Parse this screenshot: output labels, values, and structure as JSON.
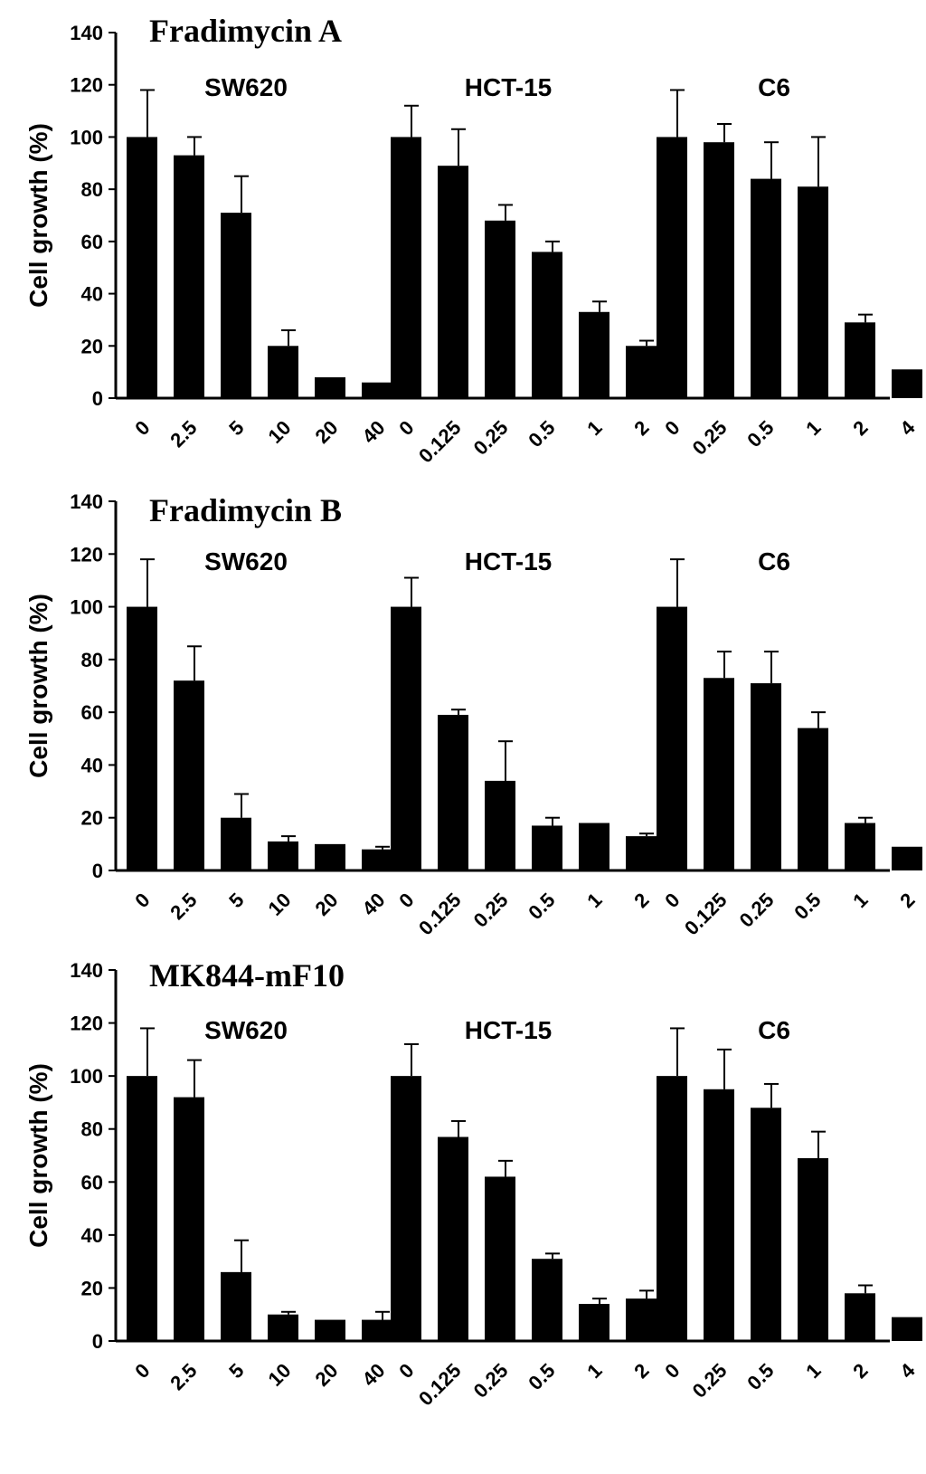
{
  "chart_data": [
    {
      "type": "bar",
      "title": "Fradimycin A",
      "ylabel": "Cell growth (%)",
      "ylim": [
        0,
        140
      ],
      "yticks": [
        "0",
        "20",
        "40",
        "60",
        "80",
        "100",
        "120",
        "140"
      ],
      "groups": [
        {
          "name": "SW620",
          "categories": [
            "0",
            "2.5",
            "5",
            "10",
            "20",
            "40"
          ],
          "values": [
            100,
            93,
            71,
            20,
            8,
            6
          ],
          "errors": [
            18,
            7,
            14,
            6,
            0,
            0
          ]
        },
        {
          "name": "HCT-15",
          "categories": [
            "0",
            "0.125",
            "0.25",
            "0.5",
            "1",
            "2"
          ],
          "values": [
            100,
            89,
            68,
            56,
            33,
            20
          ],
          "errors": [
            12,
            14,
            6,
            4,
            4,
            2
          ]
        },
        {
          "name": "C6",
          "categories": [
            "0",
            "0.25",
            "0.5",
            "1",
            "2",
            "4"
          ],
          "values": [
            100,
            98,
            84,
            81,
            29,
            11
          ],
          "errors": [
            18,
            7,
            14,
            19,
            3,
            0
          ]
        }
      ]
    },
    {
      "type": "bar",
      "title": "Fradimycin B",
      "ylabel": "Cell growth (%)",
      "ylim": [
        0,
        140
      ],
      "yticks": [
        "0",
        "20",
        "40",
        "60",
        "80",
        "100",
        "120",
        "140"
      ],
      "groups": [
        {
          "name": "SW620",
          "categories": [
            "0",
            "2.5",
            "5",
            "10",
            "20",
            "40"
          ],
          "values": [
            100,
            72,
            20,
            11,
            10,
            8
          ],
          "errors": [
            18,
            13,
            9,
            2,
            0,
            1
          ]
        },
        {
          "name": "HCT-15",
          "categories": [
            "0",
            "0.125",
            "0.25",
            "0.5",
            "1",
            "2"
          ],
          "values": [
            100,
            59,
            34,
            17,
            18,
            13
          ],
          "errors": [
            11,
            2,
            15,
            3,
            0,
            1
          ]
        },
        {
          "name": "C6",
          "categories": [
            "0",
            "0.125",
            "0.25",
            "0.5",
            "1",
            "2"
          ],
          "values": [
            100,
            73,
            71,
            54,
            18,
            9
          ],
          "errors": [
            18,
            10,
            12,
            6,
            2,
            0
          ]
        }
      ]
    },
    {
      "type": "bar",
      "title": "MK844-mF10",
      "ylabel": "Cell growth (%)",
      "ylim": [
        0,
        140
      ],
      "yticks": [
        "0",
        "20",
        "40",
        "60",
        "80",
        "100",
        "120",
        "140"
      ],
      "groups": [
        {
          "name": "SW620",
          "categories": [
            "0",
            "2.5",
            "5",
            "10",
            "20",
            "40"
          ],
          "values": [
            100,
            92,
            26,
            10,
            8,
            8
          ],
          "errors": [
            18,
            14,
            12,
            1,
            0,
            3
          ]
        },
        {
          "name": "HCT-15",
          "categories": [
            "0",
            "0.125",
            "0.25",
            "0.5",
            "1",
            "2"
          ],
          "values": [
            100,
            77,
            62,
            31,
            14,
            16
          ],
          "errors": [
            12,
            6,
            6,
            2,
            2,
            3
          ]
        },
        {
          "name": "C6",
          "categories": [
            "0",
            "0.25",
            "0.5",
            "1",
            "2",
            "4"
          ],
          "values": [
            100,
            95,
            88,
            69,
            18,
            9
          ],
          "errors": [
            18,
            15,
            9,
            10,
            3,
            0
          ]
        }
      ]
    }
  ]
}
